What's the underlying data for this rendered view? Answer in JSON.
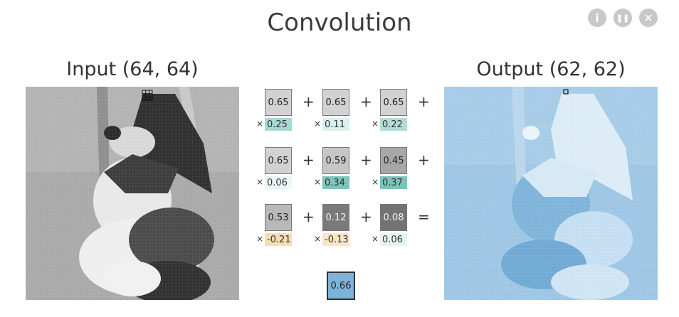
{
  "title": "Convolution",
  "controls": {
    "info": "i",
    "pause": "❚❚",
    "close": "✕"
  },
  "input": {
    "label": "Input (64, 64)"
  },
  "output": {
    "label": "Output (62, 62)"
  },
  "kernel": {
    "rows": [
      {
        "inputs": [
          "0.65",
          "0.65",
          "0.65"
        ],
        "weights": [
          "0.25",
          "0.11",
          "0.22"
        ],
        "ops": [
          "+",
          "+",
          "+"
        ]
      },
      {
        "inputs": [
          "0.65",
          "0.59",
          "0.45"
        ],
        "weights": [
          "0.06",
          "0.34",
          "0.37"
        ],
        "ops": [
          "+",
          "+",
          "+"
        ]
      },
      {
        "inputs": [
          "0.53",
          "0.12",
          "0.08"
        ],
        "weights": [
          "-0.21",
          "-0.13",
          "0.06"
        ],
        "ops": [
          "+",
          "+",
          "="
        ]
      }
    ],
    "times": "×",
    "result": "0.66"
  }
}
